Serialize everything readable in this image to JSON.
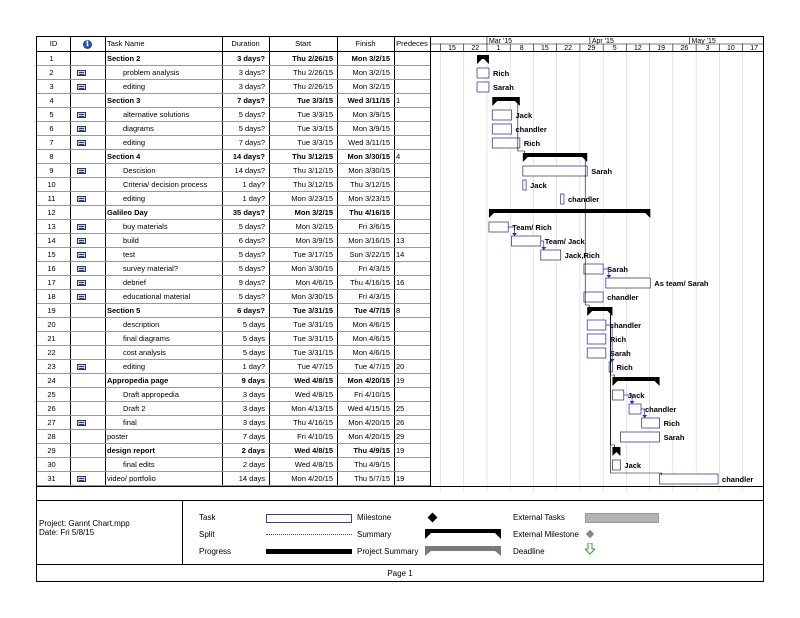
{
  "columns": {
    "id": "ID",
    "info": "ℹ",
    "name": "Task Name",
    "duration": "Duration",
    "start": "Start",
    "finish": "Finish",
    "predecessors": "Predeces"
  },
  "timescale": {
    "months": [
      "Mar '15",
      "Apr '15",
      "May '15"
    ],
    "days": [
      "15",
      "22",
      "1",
      "8",
      "15",
      "22",
      "29",
      "5",
      "12",
      "19",
      "26",
      "3",
      "10",
      "17"
    ]
  },
  "tasks": [
    {
      "id": "1",
      "note": false,
      "name": "Section 2",
      "duration": "3 days?",
      "start": "Thu 2/26/15",
      "finish": "Mon 3/2/15",
      "pred": "",
      "summary": true,
      "indent": 0,
      "bar": {
        "type": "summary",
        "start": 0.0,
        "len": 3.6
      },
      "label": ""
    },
    {
      "id": "2",
      "note": true,
      "name": "problem analysis",
      "duration": "3 days?",
      "start": "Thu 2/26/15",
      "finish": "Mon 3/2/15",
      "pred": "",
      "summary": false,
      "indent": 1,
      "bar": {
        "type": "task",
        "start": 0.0,
        "len": 3.6
      },
      "label": "Rich"
    },
    {
      "id": "3",
      "note": true,
      "name": "editing",
      "duration": "3 days?",
      "start": "Thu 2/26/15",
      "finish": "Mon 3/2/15",
      "pred": "",
      "summary": false,
      "indent": 1,
      "bar": {
        "type": "task",
        "start": 0.0,
        "len": 3.6
      },
      "label": "Sarah"
    },
    {
      "id": "4",
      "note": false,
      "name": "Section 3",
      "duration": "7 days?",
      "start": "Tue 3/3/15",
      "finish": "Wed 3/11/15",
      "pred": "1",
      "summary": true,
      "indent": 0,
      "bar": {
        "type": "summary",
        "start": 4.6,
        "len": 8.3
      },
      "label": ""
    },
    {
      "id": "5",
      "note": true,
      "name": "alternative solutions",
      "duration": "5 days?",
      "start": "Tue 3/3/15",
      "finish": "Mon 3/9/15",
      "pred": "",
      "summary": false,
      "indent": 1,
      "bar": {
        "type": "task",
        "start": 4.6,
        "len": 5.8
      },
      "label": "Jack"
    },
    {
      "id": "6",
      "note": true,
      "name": "diagrams",
      "duration": "5 days?",
      "start": "Tue 3/3/15",
      "finish": "Mon 3/9/15",
      "pred": "",
      "summary": false,
      "indent": 1,
      "bar": {
        "type": "task",
        "start": 4.6,
        "len": 5.8
      },
      "label": "chandler"
    },
    {
      "id": "7",
      "note": true,
      "name": "editing",
      "duration": "7 days?",
      "start": "Tue 3/3/15",
      "finish": "Wed 3/11/15",
      "pred": "",
      "summary": false,
      "indent": 1,
      "bar": {
        "type": "task",
        "start": 4.6,
        "len": 8.3
      },
      "label": "Rich"
    },
    {
      "id": "8",
      "note": false,
      "name": "Section 4",
      "duration": "14 days?",
      "start": "Thu 3/12/15",
      "finish": "Mon 3/30/15",
      "pred": "4",
      "summary": true,
      "indent": 0,
      "bar": {
        "type": "summary",
        "start": 13.8,
        "len": 19.4
      },
      "label": ""
    },
    {
      "id": "9",
      "note": true,
      "name": "Descision",
      "duration": "14 days?",
      "start": "Thu 3/12/15",
      "finish": "Mon 3/30/15",
      "pred": "",
      "summary": false,
      "indent": 1,
      "bar": {
        "type": "task",
        "start": 13.8,
        "len": 19.4
      },
      "label": "Sarah"
    },
    {
      "id": "10",
      "note": false,
      "name": "Criteria/ decision process",
      "duration": "1 day?",
      "start": "Thu 3/12/15",
      "finish": "Thu 3/12/15",
      "pred": "",
      "summary": false,
      "indent": 1,
      "bar": {
        "type": "task",
        "start": 13.8,
        "len": 1.0
      },
      "label": "Jack"
    },
    {
      "id": "11",
      "note": true,
      "name": "editing",
      "duration": "1 day?",
      "start": "Mon 3/23/15",
      "finish": "Mon 3/23/15",
      "pred": "",
      "summary": false,
      "indent": 1,
      "bar": {
        "type": "task",
        "start": 25.2,
        "len": 1.0
      },
      "label": "chandler"
    },
    {
      "id": "12",
      "note": false,
      "name": "Galileo Day",
      "duration": "35 days?",
      "start": "Mon 3/2/15",
      "finish": "Thu 4/16/15",
      "pred": "",
      "summary": true,
      "indent": 0,
      "bar": {
        "type": "summary",
        "start": 3.6,
        "len": 48.6
      },
      "label": ""
    },
    {
      "id": "13",
      "note": true,
      "name": "buy materials",
      "duration": "5 days?",
      "start": "Mon 3/2/15",
      "finish": "Fri 3/6/15",
      "pred": "",
      "summary": false,
      "indent": 1,
      "bar": {
        "type": "task",
        "start": 3.6,
        "len": 5.8
      },
      "label": "Team/ Rich"
    },
    {
      "id": "14",
      "note": true,
      "name": "build",
      "duration": "6 days?",
      "start": "Mon 3/9/15",
      "finish": "Mon 3/16/15",
      "pred": "13",
      "summary": false,
      "indent": 1,
      "bar": {
        "type": "task",
        "start": 10.4,
        "len": 8.8
      },
      "label": "Team/ Jack"
    },
    {
      "id": "15",
      "note": true,
      "name": "test",
      "duration": "5 days?",
      "start": "Tue 3/17/15",
      "finish": "Sun 3/22/15",
      "pred": "14",
      "summary": false,
      "indent": 1,
      "bar": {
        "type": "task",
        "start": 19.2,
        "len": 6.0
      },
      "label": "Jack,Rich"
    },
    {
      "id": "16",
      "note": true,
      "name": "survey material?",
      "duration": "5 days?",
      "start": "Mon 3/30/15",
      "finish": "Fri 4/3/15",
      "pred": "",
      "summary": false,
      "indent": 1,
      "bar": {
        "type": "task",
        "start": 32.2,
        "len": 5.8
      },
      "label": "Sarah"
    },
    {
      "id": "17",
      "note": true,
      "name": "debrief",
      "duration": "9 days?",
      "start": "Mon 4/6/15",
      "finish": "Thu 4/16/15",
      "pred": "16",
      "summary": false,
      "indent": 1,
      "bar": {
        "type": "task",
        "start": 38.8,
        "len": 13.4
      },
      "label": "As team/ Sarah"
    },
    {
      "id": "18",
      "note": true,
      "name": "educational material",
      "duration": "5 days?",
      "start": "Mon 3/30/15",
      "finish": "Fri 4/3/15",
      "pred": "",
      "summary": false,
      "indent": 1,
      "bar": {
        "type": "task",
        "start": 32.2,
        "len": 5.8
      },
      "label": "chandler"
    },
    {
      "id": "19",
      "note": false,
      "name": "Section 5",
      "duration": "6 days?",
      "start": "Tue 3/31/15",
      "finish": "Tue 4/7/15",
      "pred": "8",
      "summary": true,
      "indent": 0,
      "bar": {
        "type": "summary",
        "start": 33.2,
        "len": 7.6
      },
      "label": ""
    },
    {
      "id": "20",
      "note": false,
      "name": "description",
      "duration": "5 days",
      "start": "Tue 3/31/15",
      "finish": "Mon 4/6/15",
      "pred": "",
      "summary": false,
      "indent": 1,
      "bar": {
        "type": "task",
        "start": 33.2,
        "len": 5.6
      },
      "label": "chandler"
    },
    {
      "id": "21",
      "note": false,
      "name": "final diagrams",
      "duration": "5 days",
      "start": "Tue 3/31/15",
      "finish": "Mon 4/6/15",
      "pred": "",
      "summary": false,
      "indent": 1,
      "bar": {
        "type": "task",
        "start": 33.2,
        "len": 5.6
      },
      "label": "Rich"
    },
    {
      "id": "22",
      "note": false,
      "name": "cost analysis",
      "duration": "5 days",
      "start": "Tue 3/31/15",
      "finish": "Mon 4/6/15",
      "pred": "",
      "summary": false,
      "indent": 1,
      "bar": {
        "type": "task",
        "start": 33.2,
        "len": 5.6
      },
      "label": "Sarah"
    },
    {
      "id": "23",
      "note": true,
      "name": "editing",
      "duration": "1 day?",
      "start": "Tue 4/7/15",
      "finish": "Tue 4/7/15",
      "pred": "20",
      "summary": false,
      "indent": 1,
      "bar": {
        "type": "task",
        "start": 39.8,
        "len": 1.0
      },
      "label": "Rich"
    },
    {
      "id": "24",
      "note": false,
      "name": "Appropedia page",
      "duration": "9 days",
      "start": "Wed 4/8/15",
      "finish": "Mon 4/20/15",
      "pred": "19",
      "summary": true,
      "indent": 0,
      "bar": {
        "type": "summary",
        "start": 40.8,
        "len": 14.2
      },
      "label": ""
    },
    {
      "id": "25",
      "note": false,
      "name": "Draft appropedia",
      "duration": "3 days",
      "start": "Wed 4/8/15",
      "finish": "Fri 4/10/15",
      "pred": "",
      "summary": false,
      "indent": 1,
      "bar": {
        "type": "task",
        "start": 40.8,
        "len": 3.4
      },
      "label": "Jack"
    },
    {
      "id": "26",
      "note": false,
      "name": "Draft 2",
      "duration": "3 days",
      "start": "Mon 4/13/15",
      "finish": "Wed 4/15/15",
      "pred": "25",
      "summary": false,
      "indent": 1,
      "bar": {
        "type": "task",
        "start": 45.8,
        "len": 3.6
      },
      "label": "chandler"
    },
    {
      "id": "27",
      "note": true,
      "name": "final",
      "duration": "3 days",
      "start": "Thu 4/16/15",
      "finish": "Mon 4/20/15",
      "pred": "26",
      "summary": false,
      "indent": 1,
      "bar": {
        "type": "task",
        "start": 49.6,
        "len": 5.4
      },
      "label": "Rich"
    },
    {
      "id": "28",
      "note": false,
      "name": "poster",
      "duration": "7 days",
      "start": "Fri 4/10/15",
      "finish": "Mon 4/20/15",
      "pred": "29",
      "summary": false,
      "indent": 0,
      "bar": {
        "type": "task",
        "start": 43.2,
        "len": 11.8
      },
      "label": "Sarah"
    },
    {
      "id": "29",
      "note": false,
      "name": "design report",
      "duration": "2 days",
      "start": "Wed 4/8/15",
      "finish": "Thu 4/9/15",
      "pred": "19",
      "summary": true,
      "indent": 0,
      "bar": {
        "type": "summary",
        "start": 40.8,
        "len": 2.4
      },
      "label": ""
    },
    {
      "id": "30",
      "note": false,
      "name": "final edits",
      "duration": "2 days",
      "start": "Wed 4/8/15",
      "finish": "Thu 4/9/15",
      "pred": "",
      "summary": false,
      "indent": 1,
      "bar": {
        "type": "task",
        "start": 40.8,
        "len": 2.4
      },
      "label": "Jack"
    },
    {
      "id": "31",
      "note": true,
      "name": "video/ portfolio",
      "duration": "14 days",
      "start": "Mon 4/20/15",
      "finish": "Thu 5/7/15",
      "pred": "19",
      "summary": false,
      "indent": 0,
      "bar": {
        "type": "task",
        "start": 55.0,
        "len": 17.6
      },
      "label": "chandler"
    }
  ],
  "footer": {
    "project": "Project: Gannt Chart.mpp",
    "date": "Date: Fri 5/8/15",
    "legend": {
      "task": "Task",
      "split": "Split",
      "progress": "Progress",
      "milestone": "Milestone",
      "summary": "Summary",
      "project_summary": "Project Summary",
      "external_tasks": "External Tasks",
      "external_milestone": "External Milestone",
      "deadline": "Deadline"
    }
  },
  "page_label": "Page 1",
  "colors": {
    "task_bar_border": "#3b3f9c",
    "summary": "#000000",
    "link_arrow": "#1a2fbf",
    "external": "#b3b3b3",
    "deadline": "#2e9e3a"
  }
}
